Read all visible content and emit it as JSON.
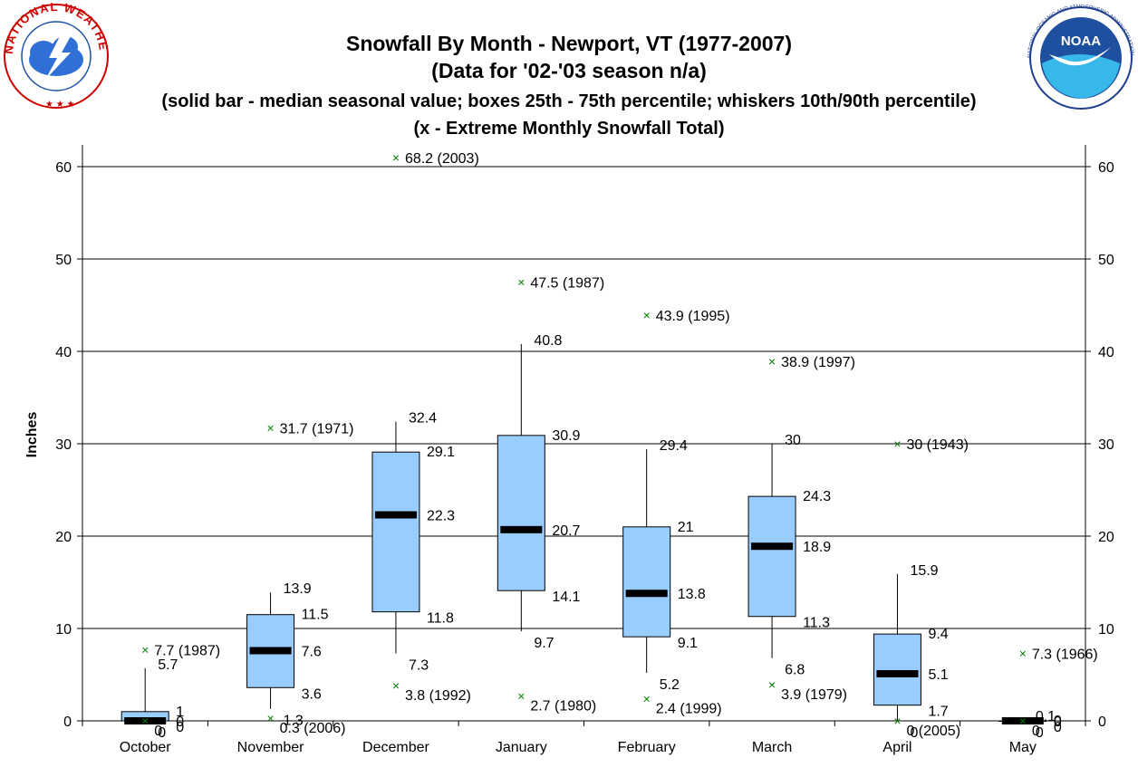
{
  "logos": {
    "nws_text": "NATIONAL WEATHER SERVICE",
    "noaa_text": "NOAA",
    "noaa_ring_text": "NATIONAL OCEANIC AND ATMOSPHERIC ADMINISTRATION · U.S. DEPARTMENT OF COMMERCE"
  },
  "colors": {
    "box_fill": "#99ccff",
    "extreme_marker": "#008000",
    "gridline": "#000000",
    "median_bar": "#000000"
  },
  "chart_data": {
    "type": "box",
    "title": "Snowfall By Month - Newport, VT (1977-2007)",
    "subtitle": "(Data for '02-'03 season n/a)",
    "legend_line": "(solid bar - median seasonal value; boxes 25th - 75th percentile; whiskers 10th/90th percentile)",
    "extreme_line": "(x - Extreme Monthly Snowfall Total)",
    "ylabel": "Inches",
    "ylim": [
      0,
      60
    ],
    "yticks": [
      "0",
      "10",
      "20",
      "30",
      "40",
      "50",
      "60"
    ],
    "categories": [
      "October",
      "November",
      "December",
      "January",
      "February",
      "March",
      "April",
      "May"
    ],
    "series": [
      {
        "month": "October",
        "p10": 0,
        "q1": 0,
        "median": 0,
        "q3": 1,
        "p90": 5.7,
        "p10_label": "0",
        "q1_label": "0",
        "median_label": "0",
        "q3_label": "1",
        "p90_label": "5.7",
        "max_extreme": 7.7,
        "max_label": "7.7 (1987)",
        "min_extreme": 0,
        "min_label": "0"
      },
      {
        "month": "November",
        "p10": 1.3,
        "q1": 3.6,
        "median": 7.6,
        "q3": 11.5,
        "p90": 13.9,
        "p10_label": "1.3",
        "q1_label": "3.6",
        "median_label": "7.6",
        "q3_label": "11.5",
        "p90_label": "13.9",
        "max_extreme": 31.7,
        "max_label": "31.7 (1971)",
        "min_extreme": 0.3,
        "min_label": "0.3 (2006)"
      },
      {
        "month": "December",
        "p10": 7.3,
        "q1": 11.8,
        "median": 22.3,
        "q3": 29.1,
        "p90": 32.4,
        "p10_label": "7.3",
        "q1_label": "11.8",
        "median_label": "22.3",
        "q3_label": "29.1",
        "p90_label": "32.4",
        "max_extreme": 61,
        "max_label": "68.2 (2003)",
        "min_extreme": 3.8,
        "min_label": "3.8 (1992)"
      },
      {
        "month": "January",
        "p10": 9.7,
        "q1": 14.1,
        "median": 20.7,
        "q3": 30.9,
        "p90": 40.8,
        "p10_label": "9.7",
        "q1_label": "14.1",
        "median_label": "20.7",
        "q3_label": "30.9",
        "p90_label": "40.8",
        "max_extreme": 47.5,
        "max_label": "47.5 (1987)",
        "min_extreme": 2.7,
        "min_label": "2.7 (1980)"
      },
      {
        "month": "February",
        "p10": 5.2,
        "q1": 9.1,
        "median": 13.8,
        "q3": 21,
        "p90": 29.4,
        "p10_label": "5.2",
        "q1_label": "9.1",
        "median_label": "13.8",
        "q3_label": "21",
        "p90_label": "29.4",
        "max_extreme": 43.9,
        "max_label": "43.9 (1995)",
        "min_extreme": 2.4,
        "min_label": "2.4 (1999)"
      },
      {
        "month": "March",
        "p10": 6.8,
        "q1": 11.3,
        "median": 18.9,
        "q3": 24.3,
        "p90": 30,
        "p10_label": "6.8",
        "q1_label": "11.3",
        "median_label": "18.9",
        "q3_label": "24.3",
        "p90_label": "30",
        "max_extreme": 38.9,
        "max_label": "38.9 (1997)",
        "min_extreme": 3.9,
        "min_label": "3.9 (1979)"
      },
      {
        "month": "April",
        "p10": 0,
        "q1": 1.7,
        "median": 5.1,
        "q3": 9.4,
        "p90": 15.9,
        "p10_label": "0",
        "q1_label": "1.7",
        "median_label": "5.1",
        "q3_label": "9.4",
        "p90_label": "15.9",
        "max_extreme": 30,
        "max_label": "30 (1943)",
        "min_extreme": 0,
        "min_label": "0 (2005)"
      },
      {
        "month": "May",
        "p10": 0,
        "q1": 0,
        "median": 0,
        "q3": 0,
        "p90": 0.1,
        "p10_label": "0",
        "q1_label": "0",
        "median_label": "0",
        "q3_label": "0",
        "p90_label": "0.1",
        "max_extreme": 7.3,
        "max_label": "7.3 (1966)",
        "min_extreme": 0,
        "min_label": "0"
      }
    ]
  }
}
